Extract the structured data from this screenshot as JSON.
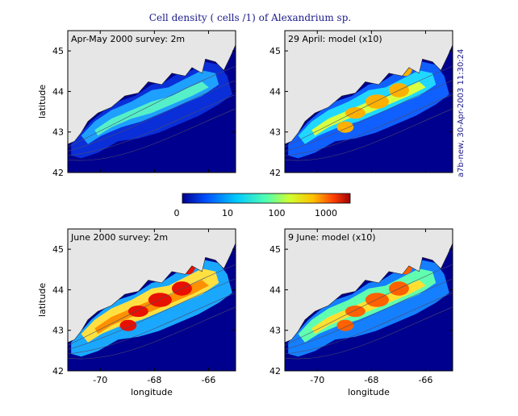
{
  "title": "Cell density ( cells /1) of Alexandrium sp.",
  "stamp": "a7b-new, 30-Apr-2003 11:30:24",
  "colorbar": {
    "ticks": [
      "0",
      "10",
      "100",
      "1000"
    ],
    "colors": [
      "#00008f",
      "#0050ff",
      "#00c8ff",
      "#50ffb0",
      "#d0ff30",
      "#ffc000",
      "#ff4000",
      "#a00000"
    ]
  },
  "chart_data": [
    {
      "type": "heatmap",
      "title": "Apr-May 2000 survey: 2m",
      "xlabel": "",
      "ylabel": "latitude",
      "xlim": [
        -71.2,
        -65
      ],
      "ylim": [
        42,
        45.5
      ],
      "xticks": [],
      "yticks": [
        "42",
        "43",
        "44",
        "45"
      ],
      "intensity": "low"
    },
    {
      "type": "heatmap",
      "title": "29 April: model (x10)",
      "xlabel": "",
      "ylabel": "",
      "xlim": [
        -71.2,
        -65
      ],
      "ylim": [
        42,
        45.5
      ],
      "xticks": [],
      "yticks": [
        "42",
        "43",
        "44",
        "45"
      ],
      "intensity": "medium"
    },
    {
      "type": "heatmap",
      "title": "June 2000 survey: 2m",
      "xlabel": "longitude",
      "ylabel": "latitude",
      "xlim": [
        -71.2,
        -65
      ],
      "ylim": [
        42,
        45.5
      ],
      "xticks": [
        "-70",
        "-68",
        "-66"
      ],
      "yticks": [
        "42",
        "43",
        "44",
        "45"
      ],
      "intensity": "high"
    },
    {
      "type": "heatmap",
      "title": "9 June: model (x10)",
      "xlabel": "longitude",
      "ylabel": "",
      "xlim": [
        -71.2,
        -65
      ],
      "ylim": [
        42,
        45.5
      ],
      "xticks": [
        "-70",
        "-68",
        "-66"
      ],
      "yticks": [
        "42",
        "43",
        "44",
        "45"
      ],
      "intensity": "medium-high"
    }
  ]
}
